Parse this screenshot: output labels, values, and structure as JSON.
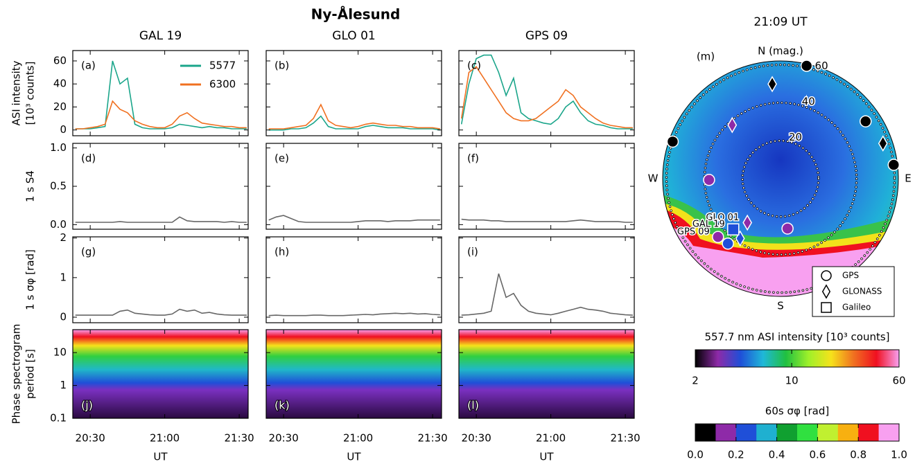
{
  "chart_data": {
    "type": "multi-panel",
    "title": "Ny-Ålesund",
    "columns": [
      "GAL 19",
      "GLO 01",
      "GPS 09"
    ],
    "x_label": "UT",
    "x": [
      20.4,
      20.45,
      20.5,
      20.55,
      20.6,
      20.65,
      20.7,
      20.75,
      20.8,
      20.85,
      20.9,
      20.95,
      21.0,
      21.05,
      21.1,
      21.15,
      21.2,
      21.25,
      21.3,
      21.35,
      21.4,
      21.45,
      21.5,
      21.55
    ],
    "xlim": [
      20.383,
      21.56
    ],
    "xticks": [
      {
        "value": 20.5,
        "label": "20:30"
      },
      {
        "value": 21,
        "label": "21:00"
      },
      {
        "value": 21.5,
        "label": "21:30"
      }
    ],
    "rows": [
      {
        "type": "line",
        "ylabel": [
          "ASI intensity",
          "[10³ counts]"
        ],
        "ylim": [
          -5,
          69
        ],
        "yticks": [
          0,
          20,
          40,
          60
        ],
        "series": [
          {
            "name": "5577",
            "color": "#1aa58a"
          },
          {
            "name": "6300",
            "color": "#f07020"
          }
        ],
        "panels": [
          {
            "letter": "(a)",
            "values": [
              [
                1,
                1,
                1,
                2,
                3,
                60,
                40,
                45,
                5,
                2,
                1,
                1,
                1,
                2,
                5,
                4,
                3,
                2,
                3,
                2,
                2,
                1,
                1,
                1
              ],
              [
                1,
                1,
                2,
                3,
                5,
                25,
                18,
                15,
                8,
                5,
                3,
                2,
                2,
                5,
                12,
                15,
                10,
                6,
                5,
                4,
                3,
                3,
                2,
                2
              ]
            ]
          },
          {
            "letter": "(b)",
            "values": [
              [
                0,
                0,
                0,
                1,
                1,
                2,
                6,
                12,
                3,
                1,
                1,
                1,
                1,
                3,
                4,
                3,
                2,
                2,
                2,
                1,
                1,
                1,
                1,
                0
              ],
              [
                1,
                1,
                1,
                2,
                3,
                4,
                10,
                22,
                8,
                4,
                3,
                2,
                3,
                5,
                6,
                5,
                4,
                4,
                3,
                3,
                2,
                2,
                2,
                1
              ]
            ]
          },
          {
            "letter": "(c)",
            "values": [
              [
                5,
                40,
                62,
                65,
                65,
                50,
                30,
                45,
                15,
                10,
                8,
                6,
                5,
                10,
                20,
                25,
                15,
                8,
                5,
                4,
                2,
                1,
                1,
                1
              ],
              [
                10,
                50,
                55,
                45,
                35,
                25,
                15,
                10,
                8,
                8,
                10,
                15,
                20,
                25,
                35,
                30,
                20,
                15,
                10,
                6,
                4,
                3,
                2,
                2
              ]
            ]
          }
        ]
      },
      {
        "type": "line",
        "ylabel": [
          "1 s S4"
        ],
        "ylim": [
          -0.06,
          1.06
        ],
        "yticks": [
          {
            "value": 0,
            "label": "0.0"
          },
          0.5,
          {
            "value": 1,
            "label": "1.0"
          }
        ],
        "series": [
          {
            "color": "#666666"
          }
        ],
        "panels": [
          {
            "letter": "(d)",
            "values": [
              [
                0.03,
                0.03,
                0.03,
                0.03,
                0.03,
                0.03,
                0.04,
                0.03,
                0.03,
                0.03,
                0.03,
                0.03,
                0.03,
                0.03,
                0.1,
                0.05,
                0.04,
                0.04,
                0.04,
                0.04,
                0.03,
                0.04,
                0.03,
                0.03
              ]
            ]
          },
          {
            "letter": "(e)",
            "values": [
              [
                0.06,
                0.1,
                0.12,
                0.08,
                0.04,
                0.03,
                0.03,
                0.03,
                0.03,
                0.03,
                0.03,
                0.03,
                0.04,
                0.05,
                0.05,
                0.05,
                0.04,
                0.05,
                0.05,
                0.05,
                0.06,
                0.06,
                0.06,
                0.06
              ]
            ]
          },
          {
            "letter": "(f)",
            "values": [
              [
                0.07,
                0.06,
                0.06,
                0.06,
                0.05,
                0.05,
                0.04,
                0.04,
                0.04,
                0.04,
                0.04,
                0.04,
                0.04,
                0.04,
                0.04,
                0.05,
                0.06,
                0.05,
                0.04,
                0.04,
                0.04,
                0.04,
                0.03,
                0.03
              ]
            ]
          }
        ]
      },
      {
        "type": "line",
        "ylabel": [
          "1 s σφ [rad]"
        ],
        "ylim": [
          -0.14,
          2.03
        ],
        "yticks": [
          0,
          1,
          2
        ],
        "series": [
          {
            "color": "#666666"
          }
        ],
        "panels": [
          {
            "letter": "(g)",
            "values": [
              [
                0.05,
                0.05,
                0.05,
                0.05,
                0.05,
                0.05,
                0.15,
                0.18,
                0.1,
                0.08,
                0.06,
                0.05,
                0.05,
                0.08,
                0.2,
                0.15,
                0.18,
                0.1,
                0.12,
                0.08,
                0.06,
                0.05,
                0.05,
                0.05
              ]
            ]
          },
          {
            "letter": "(h)",
            "values": [
              [
                0.04,
                0.05,
                0.04,
                0.04,
                0.04,
                0.04,
                0.05,
                0.05,
                0.04,
                0.04,
                0.04,
                0.05,
                0.06,
                0.07,
                0.06,
                0.08,
                0.09,
                0.1,
                0.09,
                0.1,
                0.08,
                0.09,
                0.07,
                0.06
              ]
            ]
          },
          {
            "letter": "(i)",
            "values": [
              [
                0.05,
                0.06,
                0.08,
                0.1,
                0.15,
                1.1,
                0.5,
                0.6,
                0.3,
                0.15,
                0.1,
                0.08,
                0.06,
                0.1,
                0.15,
                0.2,
                0.25,
                0.2,
                0.18,
                0.15,
                0.1,
                0.08,
                0.06,
                0.05
              ]
            ]
          }
        ]
      },
      {
        "type": "spectrogram",
        "ylabel": [
          "Phase spectrogram",
          "period [s]"
        ],
        "ylim": [
          0.1,
          50
        ],
        "ylog": true,
        "yticks": [
          0.1,
          1,
          10
        ],
        "panels": [
          {
            "letter": "(j)"
          },
          {
            "letter": "(k)"
          },
          {
            "letter": "(l)"
          }
        ]
      }
    ],
    "skymap": {
      "time": "21:09 UT",
      "letter": "(m)",
      "zenith_lim": 62,
      "rings": [
        20,
        40,
        60
      ],
      "directions": [
        {
          "label": "N (mag.)",
          "azimuth": 0
        },
        {
          "label": "E",
          "azimuth": 90
        },
        {
          "label": "S",
          "azimuth": 180
        },
        {
          "label": "W",
          "azimuth": 270
        }
      ],
      "legend": [
        {
          "label": "GPS",
          "shape": "circle"
        },
        {
          "label": "GLONASS",
          "shape": "diamond"
        },
        {
          "label": "Galileo",
          "shape": "square"
        }
      ],
      "satellites": [
        {
          "system": "GPS",
          "zenith": 61,
          "azimuth": 13,
          "color": "#000000"
        },
        {
          "system": "GPS",
          "zenith": 54,
          "azimuth": 56,
          "color": "#000000"
        },
        {
          "system": "GPS",
          "zenith": 60,
          "azimuth": 83,
          "color": "#000000"
        },
        {
          "system": "GPS",
          "zenith": 60,
          "azimuth": 289,
          "color": "#000000"
        },
        {
          "system": "GPS",
          "zenith": 37.6,
          "azimuth": 269,
          "color": "#8e2aa8"
        },
        {
          "system": "GPS",
          "zenith": 26.5,
          "azimuth": 172,
          "color": "#8e2aa8"
        },
        {
          "system": "GPS",
          "zenith": 45,
          "azimuth": 227,
          "color": "#8e2aa8",
          "label": "GPS 09"
        },
        {
          "system": "GPS",
          "zenith": 44,
          "azimuth": 219,
          "color": "#1f4fd8"
        },
        {
          "system": "GLONASS",
          "zenith": 50,
          "azimuth": 355,
          "color": "#000000"
        },
        {
          "system": "GLONASS",
          "zenith": 38,
          "azimuth": 318,
          "color": "#8e2aa8"
        },
        {
          "system": "GLONASS",
          "zenith": 57,
          "azimuth": 71,
          "color": "#000000"
        },
        {
          "system": "GLONASS",
          "zenith": 29,
          "azimuth": 217,
          "color": "#8e2aa8",
          "label": "GLO 01"
        },
        {
          "system": "GLONASS",
          "zenith": 38,
          "azimuth": 214,
          "color": "#1f4fd8"
        },
        {
          "system": "Galileo",
          "zenith": 36.5,
          "azimuth": 223,
          "color": "#1f4fd8",
          "label": "GAL 19"
        }
      ]
    },
    "colorbars": [
      {
        "title": "557.7 nm ASI intensity [10³ counts]",
        "lim": [
          2,
          60
        ],
        "log": true,
        "ticks": [
          2,
          10,
          60
        ],
        "colors": [
          "#000000",
          "#8e2aa8",
          "#1f4fd8",
          "#1fb8d8",
          "#20c040",
          "#9ef02a",
          "#f6e21b",
          "#f07020",
          "#f01020",
          "#f8a0f0"
        ]
      },
      {
        "title": "60s σφ [rad]",
        "lim": [
          0,
          1
        ],
        "log": false,
        "ticks": [
          {
            "value": 0,
            "label": "0.0"
          },
          0.2,
          0.4,
          0.6,
          0.8,
          {
            "value": 1,
            "label": "1.0"
          }
        ],
        "colors": [
          "#000000",
          "#8e2aa8",
          "#1f4fd8",
          "#1fb0d0",
          "#10a030",
          "#30e040",
          "#c0f030",
          "#f8b010",
          "#f01020",
          "#f8a0f0"
        ]
      }
    ]
  }
}
